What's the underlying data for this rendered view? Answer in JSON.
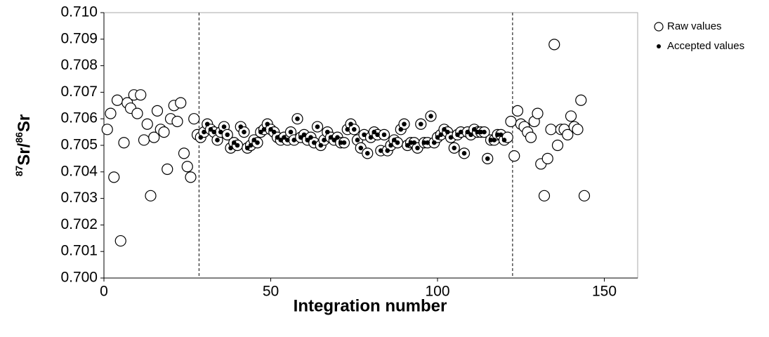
{
  "chart_data": {
    "type": "scatter",
    "x_label": "Integration number",
    "y_label": {
      "sup1": "87",
      "base1": "Sr/",
      "sup2": "86",
      "base2": "Sr"
    },
    "xlim": [
      0,
      160
    ],
    "xticks": [
      0,
      50,
      100,
      150
    ],
    "ylim": [
      0.7,
      0.71
    ],
    "yticks": [
      {
        "value": 0.7,
        "label": "0.700"
      },
      0.701,
      0.702,
      0.703,
      0.704,
      0.705,
      0.706,
      0.707,
      0.708,
      0.709,
      {
        "value": 0.71,
        "label": "0.710"
      }
    ],
    "vlines": [
      28.5,
      122.5
    ],
    "legend": "top-right",
    "series": [
      {
        "name": "Raw values",
        "color": "#000000",
        "marker": "open",
        "x": [
          1,
          2,
          3,
          4,
          5,
          6,
          7,
          8,
          9,
          10,
          11,
          12,
          13,
          14,
          15,
          16,
          17,
          18,
          19,
          20,
          21,
          22,
          23,
          24,
          25,
          26,
          27,
          28,
          29,
          30,
          31,
          32,
          33,
          34,
          35,
          36,
          37,
          38,
          39,
          40,
          41,
          42,
          43,
          44,
          45,
          46,
          47,
          48,
          49,
          50,
          51,
          52,
          53,
          54,
          55,
          56,
          57,
          58,
          59,
          60,
          61,
          62,
          63,
          64,
          65,
          66,
          67,
          68,
          69,
          70,
          71,
          72,
          73,
          74,
          75,
          76,
          77,
          78,
          79,
          80,
          81,
          82,
          83,
          84,
          85,
          86,
          87,
          88,
          89,
          90,
          91,
          92,
          93,
          94,
          95,
          96,
          97,
          98,
          99,
          100,
          101,
          102,
          103,
          104,
          105,
          106,
          107,
          108,
          109,
          110,
          111,
          112,
          113,
          114,
          115,
          116,
          117,
          118,
          119,
          120,
          121,
          122,
          123,
          124,
          125,
          126,
          127,
          128,
          129,
          130,
          131,
          132,
          133,
          134,
          135,
          136,
          137,
          138,
          139,
          140,
          141,
          142,
          143,
          144
        ],
        "values": [
          0.7056,
          0.7062,
          0.7038,
          0.7067,
          0.7014,
          0.7051,
          0.7066,
          0.7064,
          0.7069,
          0.7062,
          0.7069,
          0.7052,
          0.7058,
          0.7031,
          0.7053,
          0.7063,
          0.7056,
          0.7055,
          0.7041,
          0.706,
          0.7065,
          0.7059,
          0.7066,
          0.7047,
          0.7042,
          0.7038,
          0.706,
          0.7054,
          0.7053,
          0.7055,
          0.7058,
          0.7056,
          0.7055,
          0.7052,
          0.7055,
          0.7057,
          0.7054,
          0.7049,
          0.7051,
          0.705,
          0.7057,
          0.7055,
          0.7049,
          0.705,
          0.7052,
          0.7051,
          0.7055,
          0.7056,
          0.7058,
          0.7056,
          0.7055,
          0.7053,
          0.7052,
          0.7053,
          0.7052,
          0.7055,
          0.7052,
          0.706,
          0.7053,
          0.7054,
          0.7052,
          0.7053,
          0.7051,
          0.7057,
          0.705,
          0.7052,
          0.7055,
          0.7053,
          0.7052,
          0.7053,
          0.7051,
          0.7051,
          0.7056,
          0.7058,
          0.7056,
          0.7052,
          0.7049,
          0.7054,
          0.7047,
          0.7053,
          0.7055,
          0.7054,
          0.7048,
          0.7054,
          0.7048,
          0.705,
          0.7052,
          0.7051,
          0.7056,
          0.7058,
          0.705,
          0.7051,
          0.7051,
          0.7049,
          0.7058,
          0.7051,
          0.7051,
          0.7061,
          0.7051,
          0.7053,
          0.7054,
          0.7056,
          0.7055,
          0.7053,
          0.7049,
          0.7054,
          0.7055,
          0.7047,
          0.7055,
          0.7054,
          0.7056,
          0.7055,
          0.7055,
          0.7055,
          0.7045,
          0.7052,
          0.7052,
          0.7054,
          0.7054,
          0.7052,
          0.7053,
          0.7059,
          0.7046,
          0.7063,
          0.7058,
          0.7057,
          0.7055,
          0.7053,
          0.7059,
          0.7062,
          0.7043,
          0.7031,
          0.7045,
          0.7056,
          0.7088,
          0.705,
          0.7056,
          0.7056,
          0.7054,
          0.7061,
          0.7057,
          0.7056,
          0.7067,
          0.7031
        ]
      },
      {
        "name": "Accepted values",
        "color": "#000000",
        "marker": "dot",
        "x": [
          29,
          30,
          31,
          32,
          33,
          34,
          35,
          36,
          37,
          38,
          39,
          40,
          41,
          42,
          43,
          44,
          45,
          46,
          47,
          48,
          49,
          50,
          51,
          52,
          53,
          54,
          55,
          56,
          57,
          58,
          59,
          60,
          61,
          62,
          63,
          64,
          65,
          66,
          67,
          68,
          69,
          70,
          71,
          72,
          73,
          74,
          75,
          76,
          77,
          78,
          79,
          80,
          81,
          82,
          83,
          84,
          85,
          86,
          87,
          88,
          89,
          90,
          91,
          92,
          93,
          94,
          95,
          96,
          97,
          98,
          99,
          100,
          101,
          102,
          103,
          104,
          105,
          106,
          107,
          108,
          109,
          110,
          111,
          112,
          113,
          114,
          115,
          116,
          117,
          118,
          119,
          120
        ],
        "values": [
          0.7053,
          0.7055,
          0.7058,
          0.7056,
          0.7055,
          0.7052,
          0.7055,
          0.7057,
          0.7054,
          0.7049,
          0.7051,
          0.705,
          0.7057,
          0.7055,
          0.7049,
          0.705,
          0.7052,
          0.7051,
          0.7055,
          0.7056,
          0.7058,
          0.7056,
          0.7055,
          0.7053,
          0.7052,
          0.7053,
          0.7052,
          0.7055,
          0.7052,
          0.706,
          0.7053,
          0.7054,
          0.7052,
          0.7053,
          0.7051,
          0.7057,
          0.705,
          0.7052,
          0.7055,
          0.7053,
          0.7052,
          0.7053,
          0.7051,
          0.7051,
          0.7056,
          0.7058,
          0.7056,
          0.7052,
          0.7049,
          0.7054,
          0.7047,
          0.7053,
          0.7055,
          0.7054,
          0.7048,
          0.7054,
          0.7048,
          0.705,
          0.7052,
          0.7051,
          0.7056,
          0.7058,
          0.705,
          0.7051,
          0.7051,
          0.7049,
          0.7058,
          0.7051,
          0.7051,
          0.7061,
          0.7051,
          0.7053,
          0.7054,
          0.7056,
          0.7055,
          0.7053,
          0.7049,
          0.7054,
          0.7055,
          0.7047,
          0.7055,
          0.7054,
          0.7056,
          0.7055,
          0.7055,
          0.7055,
          0.7045,
          0.7052,
          0.7052,
          0.7054,
          0.7054,
          0.7052
        ]
      }
    ]
  }
}
